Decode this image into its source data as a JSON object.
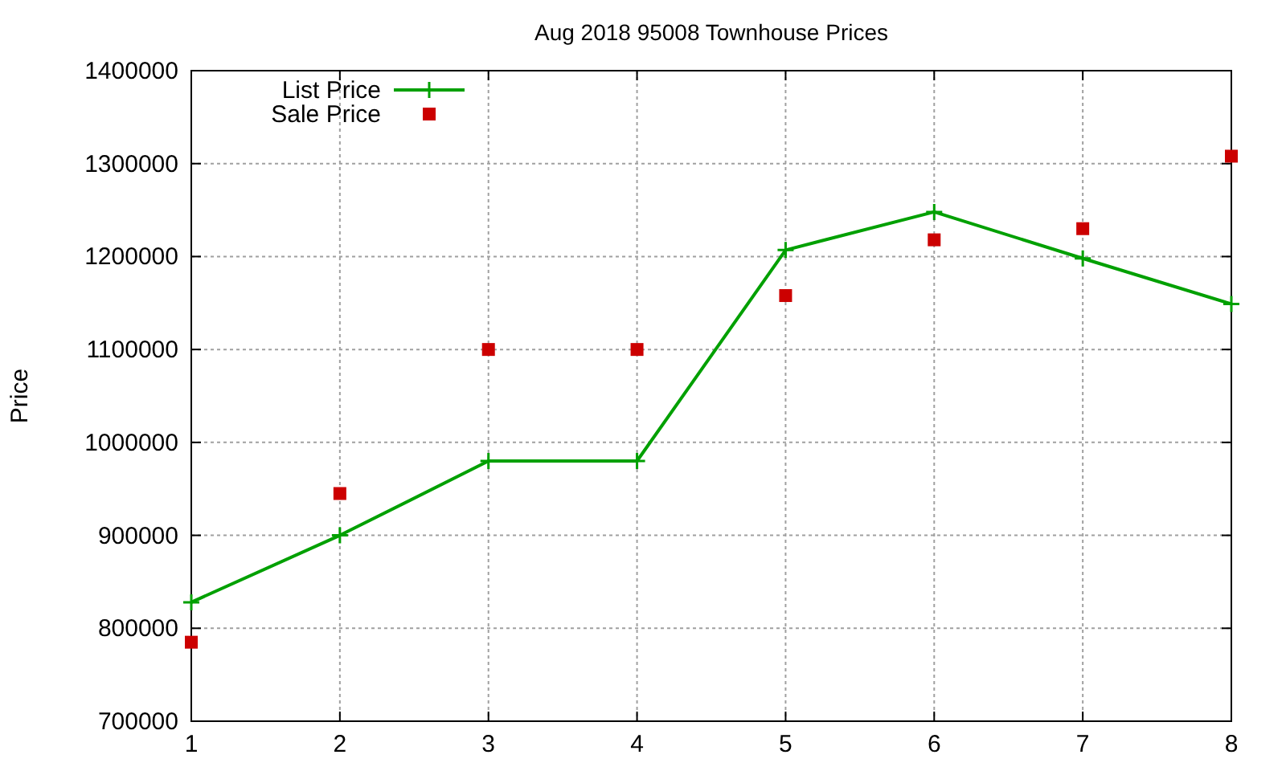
{
  "chart_data": {
    "type": "line",
    "title": "Aug 2018 95008 Townhouse Prices",
    "ylabel": "Price",
    "x": [
      1,
      2,
      3,
      4,
      5,
      6,
      7,
      8
    ],
    "xlim": [
      1,
      8
    ],
    "xticks": [
      1,
      2,
      3,
      4,
      5,
      6,
      7,
      8
    ],
    "ylim": [
      700000,
      1400000
    ],
    "yticks": [
      700000,
      800000,
      900000,
      1000000,
      1100000,
      1200000,
      1300000,
      1400000
    ],
    "grid": true,
    "legend": "top left",
    "series": [
      {
        "name": "List Price",
        "color": "#00a000",
        "marker": "cross",
        "line_style": "solid",
        "values": [
          828000,
          900000,
          980000,
          980000,
          1207000,
          1248000,
          1198000,
          1149000
        ]
      },
      {
        "name": "Sale Price",
        "type": "scatter",
        "color": "#cc0000",
        "marker": "square",
        "values": [
          785000,
          945000,
          1100000,
          1100000,
          1158000,
          1218000,
          1230000,
          1308000
        ]
      }
    ]
  }
}
